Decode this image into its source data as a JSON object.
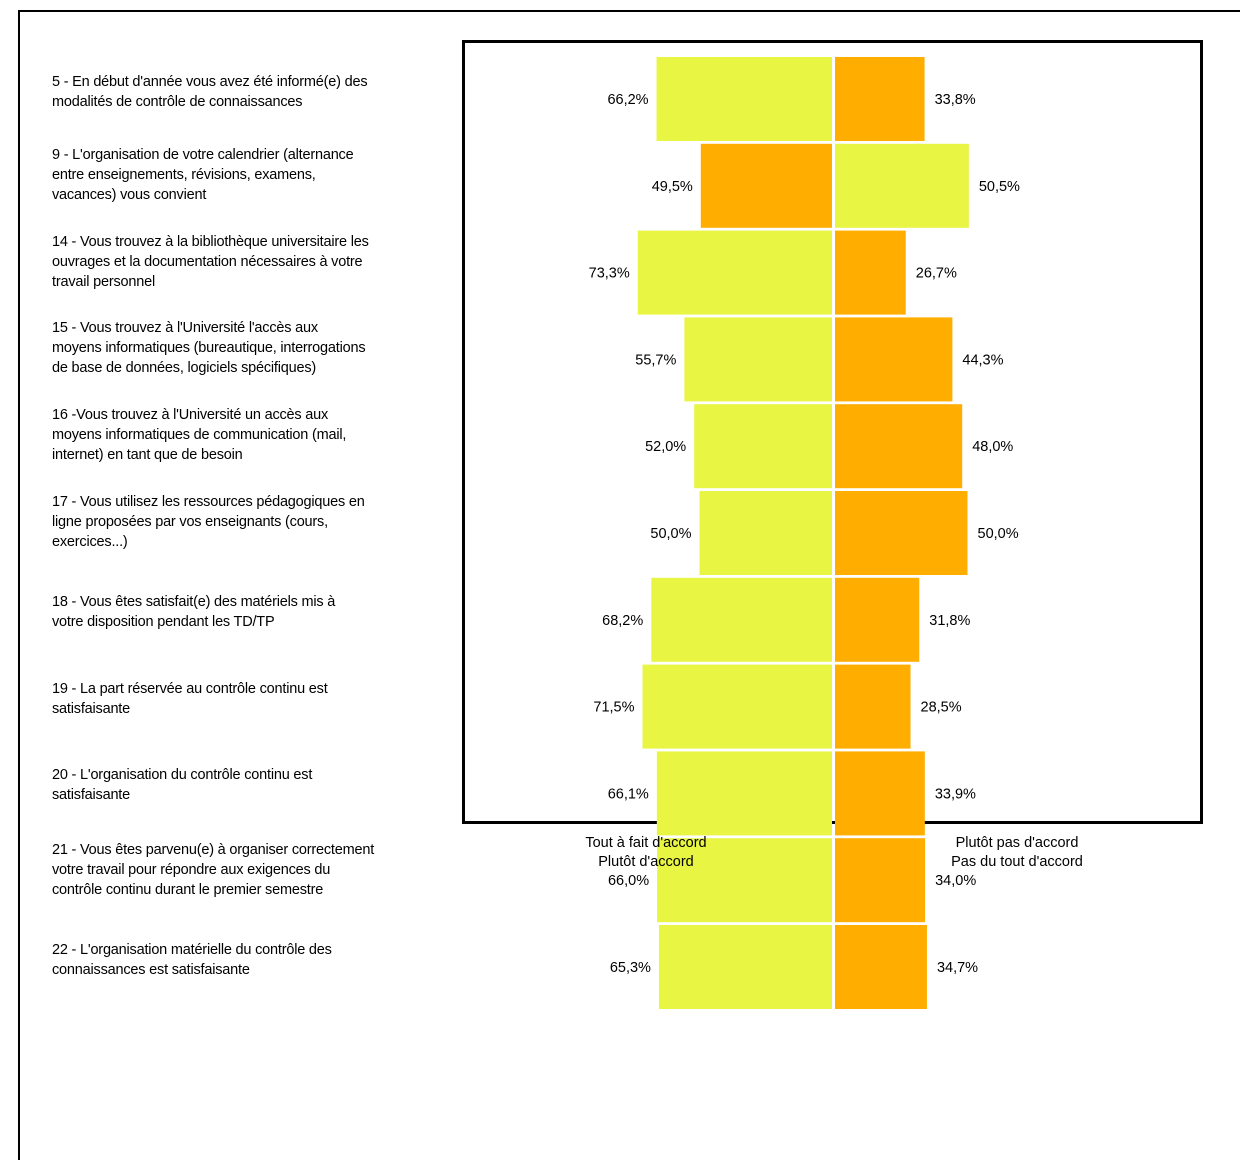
{
  "chart_data": {
    "type": "bar",
    "orientation": "horizontal-diverging",
    "categories": [
      "5 - En début d'année vous avez été informé(e) des modalités de contrôle de connaissances",
      "9 - L'organisation de votre calendrier (alternance entre enseignements, révisions, examens, vacances) vous convient",
      "14 - Vous trouvez à la bibliothèque universitaire les ouvrages et la documentation nécessaires à votre travail personnel",
      "15 - Vous trouvez à l'Université l'accès aux moyens informatiques (bureautique, interrogations de base de données, logiciels spécifiques)",
      "16 -Vous trouvez à l'Université un accès aux moyens informatiques de communication (mail, internet) en tant que de besoin",
      "17 - Vous utilisez les ressources pédagogiques en ligne proposées par vos enseignants (cours, exercices...)",
      "18 - Vous êtes satisfait(e) des matériels mis à votre disposition pendant les TD/TP",
      "19 - La part réservée au contrôle continu est satisfaisante",
      "20 - L'organisation du contrôle continu est satisfaisante",
      "21 - Vous êtes parvenu(e) à organiser correctement votre travail pour répondre aux exigences du contrôle continu durant le premier semestre",
      "22 - L'organisation matérielle du contrôle des connaissances est satisfaisante"
    ],
    "label_lines": [
      [
        "5 - En début d'année vous avez été informé(e) des",
        "modalités de contrôle de connaissances"
      ],
      [
        "9 - L'organisation de votre calendrier (alternance",
        "entre enseignements, révisions, examens,",
        "vacances) vous convient"
      ],
      [
        "14 - Vous trouvez à la bibliothèque universitaire les",
        "ouvrages et la documentation nécessaires à votre",
        "travail personnel"
      ],
      [
        "15 - Vous trouvez à l'Université l'accès aux",
        "moyens informatiques (bureautique, interrogations",
        "de base de données, logiciels spécifiques)"
      ],
      [
        "16 -Vous trouvez à l'Université un accès aux",
        "moyens informatiques de communication (mail,",
        "internet) en tant que de besoin"
      ],
      [
        "17 - Vous utilisez les ressources pédagogiques en",
        "ligne proposées par vos enseignants (cours,",
        "exercices...)"
      ],
      [
        "18 - Vous êtes satisfait(e) des matériels mis à",
        "votre disposition pendant les TD/TP"
      ],
      [
        "19 - La part réservée au contrôle continu est",
        "satisfaisante"
      ],
      [
        "20 - L'organisation du contrôle continu est",
        "satisfaisante"
      ],
      [
        "21 - Vous êtes parvenu(e) à organiser correctement",
        "votre travail pour répondre aux exigences du",
        "contrôle continu durant le premier semestre"
      ],
      [
        "22 - L'organisation matérielle du contrôle des",
        "connaissances est satisfaisante"
      ]
    ],
    "series": [
      {
        "values": [
          66.2,
          49.5,
          73.3,
          55.7,
          52.0,
          50.0,
          68.2,
          71.5,
          66.1,
          66.0,
          65.3
        ],
        "labels": [
          "66,2%",
          "49,5%",
          "73,3%",
          "55,7%",
          "52,0%",
          "50,0%",
          "68,2%",
          "71,5%",
          "66,1%",
          "66,0%",
          "65,3%"
        ]
      },
      {
        "values": [
          33.8,
          50.5,
          26.7,
          44.3,
          48.0,
          50.0,
          31.8,
          28.5,
          33.9,
          34.0,
          34.7
        ],
        "labels": [
          "33,8%",
          "50,5%",
          "26,7%",
          "44,3%",
          "48,0%",
          "50,0%",
          "31,8%",
          "28,5%",
          "33,9%",
          "34,0%",
          "34,7%"
        ]
      }
    ],
    "legend": {
      "left": [
        "Tout à fait d'accord",
        "Plutôt d'accord"
      ],
      "right": [
        "Plutôt pas d'accord",
        "Pas du tout d'accord"
      ]
    },
    "xlim": [
      -100,
      100
    ],
    "colors": {
      "majority": "#e8f542",
      "minority": "#ffae00"
    }
  }
}
